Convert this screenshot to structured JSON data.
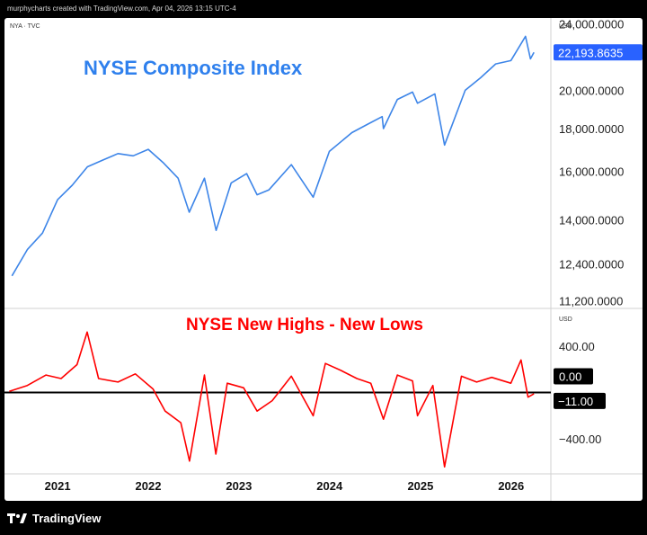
{
  "attribution": "murphycharts created with TradingView.com, Apr 04, 2026 13:15 UTC-4",
  "symbol_label": "NYA · TVC",
  "currency": "USD",
  "footer": {
    "brand": "TradingView"
  },
  "colors": {
    "upper_line": "#3d85e8",
    "lower_line": "#ff0000",
    "zero_line": "#000000",
    "title_blue": "#2f80ed",
    "title_red": "#ff0000"
  },
  "chart_data": [
    {
      "type": "line",
      "title": "NYSE Composite Index",
      "y_scale": "log",
      "ylim": [
        11000,
        24400
      ],
      "y_ticks": [
        11200,
        12400,
        14000,
        16000,
        18000,
        20000,
        24000
      ],
      "y_tick_labels": [
        "11,200.0000",
        "12,400.0000",
        "14,000.0000",
        "16,000.0000",
        "18,000.0000",
        "20,000.0000",
        "24,000.0000"
      ],
      "last_value_label": "22,193.8635",
      "series": [
        {
          "x": [
            "2020-07-01",
            "2020-09-01",
            "2020-11-01",
            "2021-01-01",
            "2021-03-01",
            "2021-05-01",
            "2021-07-01",
            "2021-09-01",
            "2021-11-01",
            "2022-01-01",
            "2022-03-01",
            "2022-05-01",
            "2022-06-15",
            "2022-08-15",
            "2022-10-01",
            "2022-12-01",
            "2023-02-01",
            "2023-03-15",
            "2023-05-01",
            "2023-07-31",
            "2023-10-27",
            "2023-12-31",
            "2024-03-31",
            "2024-05-31",
            "2024-07-31",
            "2024-08-05",
            "2024-09-30",
            "2024-11-30",
            "2024-12-20",
            "2025-02-28",
            "2025-04-08",
            "2025-06-30",
            "2025-08-31",
            "2025-10-31",
            "2025-12-31",
            "2026-02-28",
            "2026-03-20",
            "2026-04-03"
          ],
          "values": [
            12000,
            12900,
            13500,
            14800,
            15400,
            16200,
            16500,
            16800,
            16700,
            17000,
            16400,
            15700,
            14300,
            15700,
            13600,
            15500,
            15900,
            15000,
            15200,
            16300,
            14900,
            16900,
            17800,
            18200,
            18600,
            18000,
            19500,
            19900,
            19300,
            19800,
            17200,
            20000,
            20700,
            21500,
            21700,
            23200,
            21800,
            22193.8635
          ]
        }
      ]
    },
    {
      "type": "line",
      "title": "NYSE New Highs - New Lows",
      "ylim": [
        -700,
        700
      ],
      "y_ticks": [
        400,
        0,
        -400
      ],
      "y_tick_labels": [
        "400.00",
        "0.00",
        "−400.00"
      ],
      "zero_label": "0.00",
      "last_value_label": "−11.00",
      "series": [
        {
          "x": [
            "2020-06-20",
            "2020-09-01",
            "2020-11-15",
            "2021-01-15",
            "2021-03-20",
            "2021-04-30",
            "2021-06-15",
            "2021-09-01",
            "2021-11-10",
            "2022-01-20",
            "2022-03-10",
            "2022-05-12",
            "2022-06-16",
            "2022-08-15",
            "2022-09-30",
            "2022-11-15",
            "2023-01-20",
            "2023-03-15",
            "2023-05-15",
            "2023-07-31",
            "2023-10-27",
            "2023-12-15",
            "2024-02-15",
            "2024-04-20",
            "2024-06-15",
            "2024-08-05",
            "2024-09-30",
            "2024-11-30",
            "2024-12-20",
            "2025-02-20",
            "2025-04-08",
            "2025-06-15",
            "2025-08-15",
            "2025-10-15",
            "2025-12-31",
            "2026-02-10",
            "2026-03-10",
            "2026-04-03"
          ],
          "values": [
            10,
            60,
            150,
            120,
            240,
            520,
            120,
            90,
            160,
            30,
            -160,
            -260,
            -590,
            150,
            -530,
            80,
            40,
            -160,
            -70,
            140,
            -200,
            250,
            190,
            120,
            80,
            -230,
            150,
            100,
            -200,
            60,
            -640,
            140,
            90,
            130,
            80,
            280,
            -40,
            -11
          ]
        }
      ]
    }
  ],
  "x_axis": {
    "labels": [
      "2021",
      "2022",
      "2023",
      "2024",
      "2025",
      "2026"
    ],
    "years": [
      2021,
      2022,
      2023,
      2024,
      2025,
      2026
    ]
  }
}
